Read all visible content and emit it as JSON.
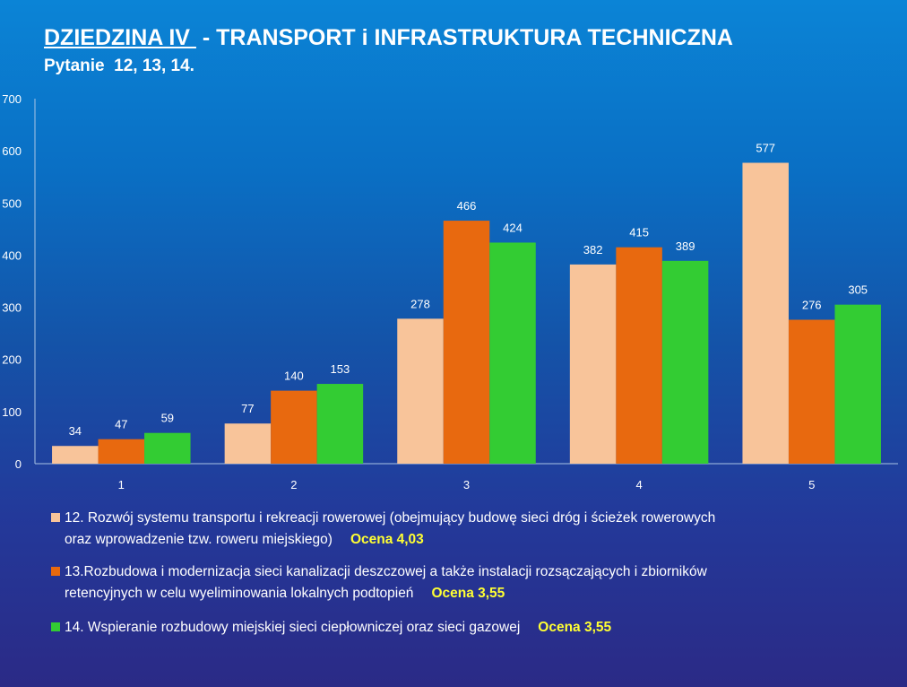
{
  "title_main": "DZIEDZINA IV ",
  "title_rest": " - TRANSPORT i INFRASTRUKTURA TECHNICZNA",
  "subtitle": "Pytanie  12, 13, 14.",
  "chart_data": {
    "type": "bar",
    "categories": [
      "1",
      "2",
      "3",
      "4",
      "5"
    ],
    "series": [
      {
        "name": "12. Rozwój systemu transportu i rekreacji rowerowej (obejmujący budowę sieci dróg i ścieżek rowerowych oraz wprowadzenie tzw. roweru miejskiego)",
        "values": [
          34,
          77,
          278,
          382,
          577
        ],
        "color": "#f8c49a"
      },
      {
        "name": "13.Rozbudowa i modernizacja sieci kanalizacji deszczowej a także instalacji rozsączających i zbiorników retencyjnych w celu wyeliminowania lokalnych podtopień",
        "values": [
          47,
          140,
          466,
          415,
          276
        ],
        "color": "#e8690f"
      },
      {
        "name": "14. Wspieranie rozbudowy miejskiej sieci ciepłowniczej oraz sieci gazowej",
        "values": [
          59,
          153,
          424,
          389,
          305
        ],
        "color": "#33cc33"
      }
    ],
    "ylim": [
      0,
      700
    ],
    "yticks": [
      0,
      100,
      200,
      300,
      400,
      500,
      600,
      700
    ],
    "grid": false,
    "legend_position": "bottom",
    "data_labels": true
  },
  "legend": [
    {
      "line1": "12. Rozwój systemu transportu i rekreacji rowerowej (obejmujący budowę sieci dróg i ścieżek rowerowych",
      "line2": "oraz wprowadzenie tzw. roweru miejskiego)",
      "score": "Ocena 4,03"
    },
    {
      "line1": "13.Rozbudowa i modernizacja sieci kanalizacji deszczowej a także instalacji rozsączających i zbiorników",
      "line2": "retencyjnych w celu wyeliminowania lokalnych podtopień",
      "score": "Ocena 3,55"
    },
    {
      "line1": "14. Wspieranie rozbudowy miejskiej sieci ciepłowniczej oraz sieci gazowej",
      "line2": "",
      "score": "Ocena 3,55"
    }
  ]
}
